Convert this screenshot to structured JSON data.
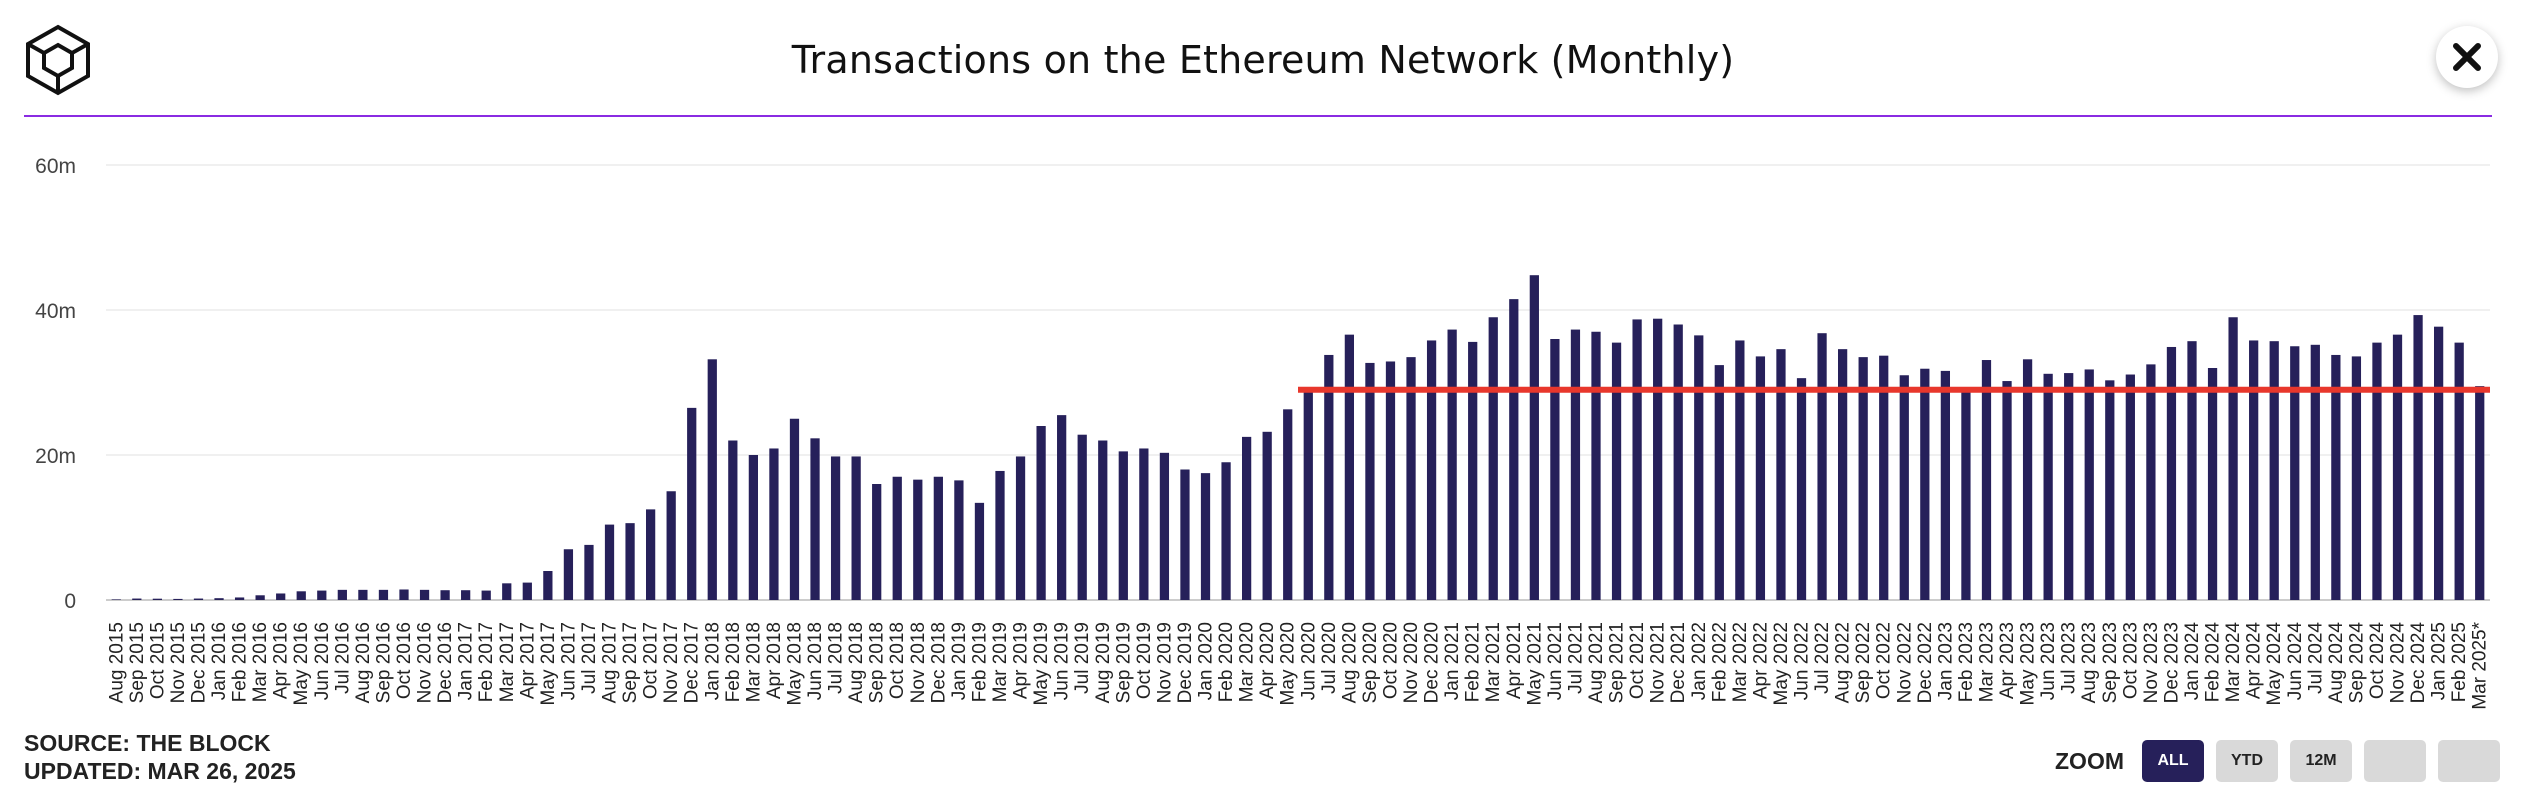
{
  "header": {
    "title": "Transactions on the Ethereum Network (Monthly)",
    "logo_icon": "the-block-cube-logo",
    "close_icon": "close-icon"
  },
  "footer": {
    "source": "SOURCE: THE BLOCK",
    "updated": "UPDATED: MAR 26, 2025",
    "zoom_label": "ZOOM",
    "zoom_buttons": [
      "ALL",
      "YTD",
      "12M",
      "",
      ""
    ],
    "zoom_active": "ALL"
  },
  "colors": {
    "bar": "#26205a",
    "reference_line": "#e8372c",
    "title_rule": "#8a2be2",
    "grid": "#ececec"
  },
  "chart_data": {
    "type": "bar",
    "title": "Transactions on the Ethereum Network (Monthly)",
    "xlabel": "",
    "ylabel": "",
    "y_ticks": [
      {
        "value": 0,
        "label": "0"
      },
      {
        "value": 20000000,
        "label": "20m"
      },
      {
        "value": 40000000,
        "label": "40m"
      },
      {
        "value": 60000000,
        "label": "60m"
      }
    ],
    "ylim": [
      0,
      60000000
    ],
    "grid": true,
    "categories": [
      "Aug 2015",
      "Sep 2015",
      "Oct 2015",
      "Nov 2015",
      "Dec 2015",
      "Jan 2016",
      "Feb 2016",
      "Mar 2016",
      "Apr 2016",
      "May 2016",
      "Jun 2016",
      "Jul 2016",
      "Aug 2016",
      "Sep 2016",
      "Oct 2016",
      "Nov 2016",
      "Dec 2016",
      "Jan 2017",
      "Feb 2017",
      "Mar 2017",
      "Apr 2017",
      "May 2017",
      "Jun 2017",
      "Jul 2017",
      "Aug 2017",
      "Sep 2017",
      "Oct 2017",
      "Nov 2017",
      "Dec 2017",
      "Jan 2018",
      "Feb 2018",
      "Mar 2018",
      "Apr 2018",
      "May 2018",
      "Jun 2018",
      "Jul 2018",
      "Aug 2018",
      "Sep 2018",
      "Oct 2018",
      "Nov 2018",
      "Dec 2018",
      "Jan 2019",
      "Feb 2019",
      "Mar 2019",
      "Apr 2019",
      "May 2019",
      "Jun 2019",
      "Jul 2019",
      "Aug 2019",
      "Sep 2019",
      "Oct 2019",
      "Nov 2019",
      "Dec 2019",
      "Jan 2020",
      "Feb 2020",
      "Mar 2020",
      "Apr 2020",
      "May 2020",
      "Jun 2020",
      "Jul 2020",
      "Aug 2020",
      "Sep 2020",
      "Oct 2020",
      "Nov 2020",
      "Dec 2020",
      "Jan 2021",
      "Feb 2021",
      "Mar 2021",
      "Apr 2021",
      "May 2021",
      "Jun 2021",
      "Jul 2021",
      "Aug 2021",
      "Sep 2021",
      "Oct 2021",
      "Nov 2021",
      "Dec 2021",
      "Jan 2022",
      "Feb 2022",
      "Mar 2022",
      "Apr 2022",
      "May 2022",
      "Jun 2022",
      "Jul 2022",
      "Aug 2022",
      "Sep 2022",
      "Oct 2022",
      "Nov 2022",
      "Dec 2022",
      "Jan 2023",
      "Feb 2023",
      "Mar 2023",
      "Apr 2023",
      "May 2023",
      "Jun 2023",
      "Jul 2023",
      "Aug 2023",
      "Sep 2023",
      "Oct 2023",
      "Nov 2023",
      "Dec 2023",
      "Jan 2024",
      "Feb 2024",
      "Mar 2024",
      "Apr 2024",
      "May 2024",
      "Jun 2024",
      "Jul 2024",
      "Aug 2024",
      "Sep 2024",
      "Oct 2024",
      "Nov 2024",
      "Dec 2024",
      "Jan 2025",
      "Feb 2025",
      "Mar 2025*"
    ],
    "values": [
      80000,
      200000,
      180000,
      150000,
      200000,
      250000,
      350000,
      650000,
      900000,
      1200000,
      1300000,
      1400000,
      1400000,
      1400000,
      1450000,
      1400000,
      1350000,
      1350000,
      1300000,
      2300000,
      2400000,
      4000000,
      7000000,
      7600000,
      10400000,
      10600000,
      12500000,
      15000000,
      26500000,
      33200000,
      22000000,
      20000000,
      20900000,
      25000000,
      22300000,
      19800000,
      19800000,
      16000000,
      17000000,
      16600000,
      17000000,
      16500000,
      13400000,
      17800000,
      19800000,
      24000000,
      25500000,
      22800000,
      22000000,
      20500000,
      20900000,
      20300000,
      18000000,
      17500000,
      19000000,
      22500000,
      23200000,
      26300000,
      29000000,
      33800000,
      36600000,
      32700000,
      32900000,
      33500000,
      35800000,
      37300000,
      35600000,
      39000000,
      41500000,
      44800000,
      36000000,
      37300000,
      37000000,
      35500000,
      38700000,
      38800000,
      38000000,
      36500000,
      32400000,
      35800000,
      33600000,
      34600000,
      30600000,
      36800000,
      34600000,
      33500000,
      33700000,
      31000000,
      31900000,
      31600000,
      29300000,
      33100000,
      30200000,
      33200000,
      31200000,
      31300000,
      31800000,
      30300000,
      31100000,
      32500000,
      34900000,
      35700000,
      32000000,
      39000000,
      35800000,
      35700000,
      35000000,
      35200000,
      33800000,
      33600000,
      35500000,
      36600000,
      39300000,
      37700000,
      35500000,
      29500000
    ],
    "reference_line": {
      "value": 29000000,
      "from": "Jun 2020",
      "to": "Mar 2025*"
    }
  }
}
